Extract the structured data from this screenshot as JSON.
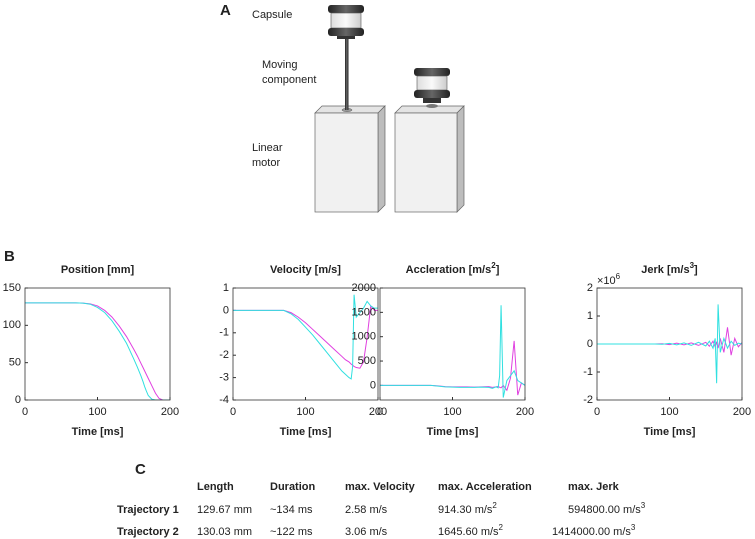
{
  "diagram": {
    "label": "A",
    "capsule": "Capsule",
    "moving_component": [
      "Moving",
      "component"
    ],
    "linear_motor": [
      "Linear",
      "motor"
    ]
  },
  "panel_b_label": "B",
  "chart_data": [
    {
      "type": "line",
      "title": "Position [mm]",
      "x_label": "Time [ms]",
      "x": [
        0,
        20,
        40,
        60,
        70,
        80,
        90,
        100,
        110,
        120,
        130,
        140,
        150,
        155,
        160,
        163,
        165,
        167,
        170,
        175,
        180,
        185,
        190,
        195,
        200
      ],
      "xlim": [
        0,
        200
      ],
      "xticks": [
        0,
        100,
        200
      ],
      "ylim": [
        0,
        150
      ],
      "yticks": [
        0,
        50,
        100,
        150
      ],
      "series": [
        {
          "color": "#e040e0",
          "values": [
            130,
            130,
            130,
            130,
            130,
            129.8,
            128.8,
            126,
            120,
            111,
            99,
            85,
            68,
            59,
            49,
            43,
            39,
            35,
            29,
            19,
            9,
            2,
            0,
            0,
            0
          ]
        },
        {
          "color": "#30e0e0",
          "values": [
            130,
            130,
            130,
            130,
            130,
            129.7,
            128.3,
            124,
            117,
            106,
            92,
            76,
            55,
            44,
            32,
            24,
            18,
            13,
            6,
            1,
            0,
            0,
            0,
            0,
            0
          ]
        }
      ]
    },
    {
      "type": "line",
      "title": "Velocity [m/s]",
      "x_label": "Time [ms]",
      "x": [
        0,
        20,
        40,
        60,
        70,
        80,
        90,
        100,
        110,
        120,
        130,
        140,
        150,
        155,
        160,
        163,
        165,
        167,
        170,
        175,
        180,
        185,
        190,
        195,
        200
      ],
      "xlim": [
        0,
        200
      ],
      "xticks": [
        0,
        100,
        200
      ],
      "ylim": [
        -4,
        1
      ],
      "yticks": [
        -4,
        -3,
        -2,
        -1,
        0,
        1
      ],
      "series": [
        {
          "color": "#e040e0",
          "values": [
            0,
            0,
            0,
            0,
            0,
            -0.1,
            -0.3,
            -0.55,
            -0.85,
            -1.15,
            -1.45,
            -1.75,
            -2.05,
            -2.2,
            -2.3,
            -2.4,
            -2.45,
            -2.5,
            -2.55,
            -2.58,
            -2.3,
            -1.2,
            0.2,
            0,
            0
          ]
        },
        {
          "color": "#30e0e0",
          "values": [
            0,
            0,
            0,
            0,
            0,
            -0.15,
            -0.4,
            -0.75,
            -1.1,
            -1.5,
            -1.9,
            -2.3,
            -2.7,
            -2.85,
            -3.0,
            -3.06,
            -2.5,
            0.7,
            -0.3,
            -0.1,
            0.1,
            0.4,
            0.2,
            0.1,
            0.1
          ]
        }
      ]
    },
    {
      "type": "line",
      "title": "Accleration [m/s",
      "title_sup": "2",
      "title_end": "]",
      "x_label": "Time [ms]",
      "x": [
        0,
        20,
        40,
        60,
        70,
        80,
        90,
        100,
        110,
        120,
        130,
        140,
        150,
        155,
        160,
        163,
        165,
        167,
        170,
        175,
        180,
        185,
        190,
        195,
        200
      ],
      "xlim": [
        0,
        200
      ],
      "xticks": [
        0,
        100,
        200
      ],
      "ylim": [
        -300,
        2000
      ],
      "yticks": [
        0,
        500,
        1000,
        1500,
        2000
      ],
      "series": [
        {
          "color": "#e040e0",
          "values": [
            0,
            0,
            0,
            0,
            0,
            -10,
            -25,
            -30,
            -30,
            -30,
            -35,
            -30,
            -25,
            -40,
            -30,
            -20,
            -40,
            -50,
            0,
            -100,
            150,
            914,
            -200,
            50,
            0
          ]
        },
        {
          "color": "#30e0e0",
          "values": [
            0,
            0,
            0,
            0,
            0,
            -15,
            -30,
            -35,
            -40,
            -40,
            -40,
            -35,
            -40,
            -60,
            -30,
            -50,
            200,
            1645,
            -250,
            100,
            200,
            300,
            100,
            50,
            0
          ]
        }
      ]
    },
    {
      "type": "line",
      "title": "Jerk [m/s",
      "title_sup": "3",
      "title_end": "]",
      "x_label": "Time [ms]",
      "y_multiplier": "×10",
      "y_multiplier_sup": "6",
      "x": [
        0,
        20,
        40,
        60,
        70,
        80,
        90,
        100,
        110,
        120,
        130,
        140,
        150,
        155,
        160,
        163,
        165,
        167,
        170,
        175,
        180,
        185,
        190,
        195,
        200
      ],
      "xlim": [
        0,
        200
      ],
      "xticks": [
        0,
        100,
        200
      ],
      "ylim": [
        -2000000,
        2000000
      ],
      "yticks": [
        {
          "value": -2000000,
          "label": "-2"
        },
        {
          "value": -1000000,
          "label": "-1"
        },
        {
          "value": 0,
          "label": "0"
        },
        {
          "value": 1000000,
          "label": "1"
        },
        {
          "value": 2000000,
          "label": "2"
        }
      ],
      "series": [
        {
          "color": "#e040e0",
          "values": [
            0,
            0,
            0,
            0,
            0,
            0,
            10000,
            -20000,
            30000,
            -30000,
            40000,
            -50000,
            60000,
            -80000,
            100000,
            -100000,
            80000,
            -150000,
            200000,
            -300000,
            594800,
            -400000,
            200000,
            -100000,
            50000
          ]
        },
        {
          "color": "#30e0e0",
          "values": [
            0,
            0,
            0,
            0,
            0,
            0,
            -10000,
            20000,
            -30000,
            40000,
            -50000,
            60000,
            -70000,
            100000,
            -150000,
            200000,
            -1400000,
            1414000,
            -300000,
            200000,
            -150000,
            100000,
            -50000,
            30000,
            0
          ]
        }
      ]
    }
  ],
  "table": {
    "label": "C",
    "header": [
      "Length",
      "Duration",
      "max. Velocity",
      "max. Acceleration",
      "max. Jerk"
    ],
    "rows": [
      {
        "name": "Trajectory 1",
        "cells": [
          {
            "text": "129.67 mm"
          },
          {
            "text": "~134 ms"
          },
          {
            "text": "2.58 m/s"
          },
          {
            "text": "914.30 m/s",
            "sup": "2"
          },
          {
            "text": "594800.00 m/s",
            "sup": "3"
          }
        ]
      },
      {
        "name": "Trajectory 2",
        "cells": [
          {
            "text": "130.03 mm"
          },
          {
            "text": "~122 ms"
          },
          {
            "text": "3.06 m/s"
          },
          {
            "text": "1645.60 m/s",
            "sup": "2"
          },
          {
            "text": "1414000.00 m/s",
            "sup": "3"
          }
        ]
      }
    ]
  }
}
